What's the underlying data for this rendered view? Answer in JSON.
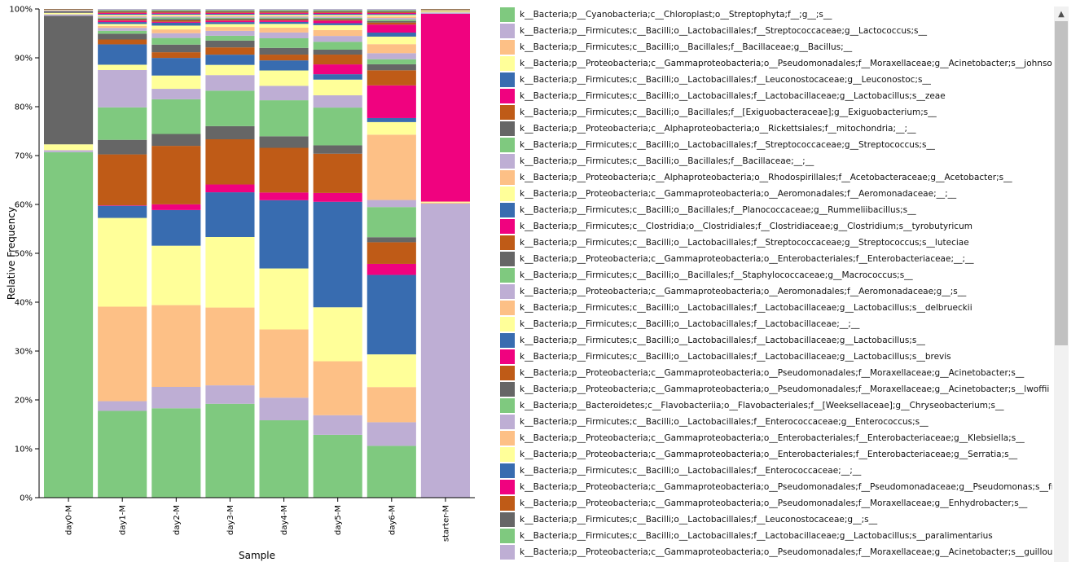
{
  "chart_data": {
    "type": "bar",
    "stacked": true,
    "xlabel": "Sample",
    "ylabel": "Relative Frequency",
    "ylim": [
      0,
      1
    ],
    "yticks": [
      "0%",
      "10%",
      "20%",
      "30%",
      "40%",
      "50%",
      "60%",
      "70%",
      "80%",
      "90%",
      "100%"
    ],
    "categories": [
      "day0-M",
      "day1-M",
      "day2-M",
      "day3-M",
      "day4-M",
      "day5-M",
      "day6-M",
      "starter-M"
    ],
    "series": [
      {
        "name": "k__Bacteria;p__Cyanobacteria;c__Chloroplast;o__Streptophyta;f__;g__;s__",
        "color": "#7fc97f",
        "values": [
          0.707,
          0.179,
          0.188,
          0.193,
          0.161,
          0.128,
          0.103,
          0
        ]
      },
      {
        "name": "k__Bacteria;p__Firmicutes;c__Bacilli;o__Lactobacillales;f__Streptococcaceae;g__Lactococcus;s__",
        "color": "#beaed4",
        "values": [
          0.004,
          0.02,
          0.045,
          0.038,
          0.047,
          0.04,
          0.047,
          0.603
        ]
      },
      {
        "name": "k__Bacteria;p__Firmicutes;c__Bacilli;o__Bacillales;f__Bacillaceae;g__Bacillus;__",
        "color": "#fdc086",
        "values": [
          0,
          0.195,
          0.172,
          0.16,
          0.142,
          0.11,
          0.07,
          0.002
        ]
      },
      {
        "name": "k__Bacteria;p__Proteobacteria;c__Gammaproteobacteria;o__Pseudomonadales;f__Moraxellaceae;g__Acinetobacter;s__johnsonii",
        "color": "#ffff99",
        "values": [
          0.012,
          0.183,
          0.125,
          0.145,
          0.127,
          0.11,
          0.065,
          0.002
        ]
      },
      {
        "name": "k__Bacteria;p__Firmicutes;c__Bacilli;o__Lactobacillales;f__Leuconostocaceae;g__Leuconostoc;s__",
        "color": "#386cb0",
        "values": [
          0,
          0.025,
          0.075,
          0.092,
          0.142,
          0.215,
          0.158,
          0
        ]
      },
      {
        "name": "k__Bacteria;p__Firmicutes;c__Bacilli;o__Lactobacillales;f__Lactobacillaceae;g__Lactobacillus;s__zeae",
        "color": "#f0027f",
        "values": [
          0,
          0.001,
          0.012,
          0.016,
          0.016,
          0.018,
          0.022,
          0.385
        ]
      },
      {
        "name": "k__Bacteria;p__Firmicutes;c__Bacilli;o__Bacillales;f__[Exiguobacteraceae];g__Exiguobacterium;s__",
        "color": "#bf5b17",
        "values": [
          0,
          0.105,
          0.123,
          0.093,
          0.093,
          0.08,
          0.043,
          0
        ]
      },
      {
        "name": "k__Bacteria;p__Proteobacteria;c__Alphaproteobacteria;o__Rickettsiales;f__mitochondria;__;__",
        "color": "#666666",
        "values": [
          0.263,
          0.03,
          0.025,
          0.027,
          0.024,
          0.017,
          0.01,
          0
        ]
      },
      {
        "name": "k__Bacteria;p__Firmicutes;c__Bacilli;o__Lactobacillales;f__Streptococcaceae;g__Streptococcus;s__",
        "color": "#7fc97f",
        "values": [
          0,
          0.067,
          0.073,
          0.073,
          0.075,
          0.077,
          0.06,
          0
        ]
      },
      {
        "name": "k__Bacteria;p__Firmicutes;c__Bacilli;o__Bacillales;f__Bacillaceae;__;__",
        "color": "#beaed4",
        "values": [
          0.003,
          0.077,
          0.022,
          0.032,
          0.03,
          0.025,
          0.014,
          0.003
        ]
      },
      {
        "name": "k__Bacteria;p__Proteobacteria;c__Alphaproteobacteria;o__Rhodospirillales;f__Acetobacteraceae;g__Acetobacter;s__",
        "color": "#fdc086",
        "values": [
          0,
          0,
          0,
          0,
          0,
          0,
          0.13,
          0
        ]
      },
      {
        "name": "k__Bacteria;p__Proteobacteria;c__Gammaproteobacteria;o__Aeromonadales;f__Aeromonadaceae;__;__",
        "color": "#ffff99",
        "values": [
          0.003,
          0.011,
          0.028,
          0.021,
          0.032,
          0.032,
          0.025,
          0.002
        ]
      },
      {
        "name": "k__Bacteria;p__Firmicutes;c__Bacilli;o__Bacillales;f__Planococcaceae;g__Rummeliibacillus;s__",
        "color": "#386cb0",
        "values": [
          0,
          0.042,
          0.037,
          0.021,
          0.021,
          0.011,
          0.008,
          0
        ]
      },
      {
        "name": "k__Bacteria;p__Firmicutes;c__Clostridia;o__Clostridiales;f__Clostridiaceae;g__Clostridium;s__tyrobutyricum",
        "color": "#f0027f",
        "values": [
          0,
          0,
          0,
          0,
          0,
          0.02,
          0.065,
          0
        ]
      },
      {
        "name": "k__Bacteria;p__Firmicutes;c__Bacilli;o__Lactobacillales;f__Streptococcaceae;g__Streptococcus;s__luteciae",
        "color": "#bf5b17",
        "values": [
          0,
          0.01,
          0.012,
          0.015,
          0.012,
          0.02,
          0.03,
          0
        ]
      },
      {
        "name": "k__Bacteria;p__Proteobacteria;c__Gammaproteobacteria;o__Enterobacteriales;f__Enterobacteriaceae;__;__",
        "color": "#666666",
        "values": [
          0.003,
          0.012,
          0.016,
          0.014,
          0.014,
          0.01,
          0.012,
          0.001
        ]
      },
      {
        "name": "k__Bacteria;p__Firmicutes;c__Bacilli;o__Bacillales;f__Staphylococcaceae;g__Macrococcus;s__",
        "color": "#7fc97f",
        "values": [
          0,
          0.006,
          0.014,
          0.01,
          0.02,
          0.016,
          0.01,
          0
        ]
      },
      {
        "name": "k__Bacteria;p__Proteobacteria;c__Gammaproteobacteria;o__Aeromonadales;f__Aeromonadaceae;g__;s__",
        "color": "#beaed4",
        "values": [
          0.002,
          0.006,
          0.01,
          0.01,
          0.012,
          0.012,
          0.012,
          0
        ]
      },
      {
        "name": "k__Bacteria;p__Firmicutes;c__Bacilli;o__Lactobacillales;f__Lactobacillaceae;g__Lactobacillus;s__delbrueckii",
        "color": "#fdc086",
        "values": [
          0,
          0.004,
          0.008,
          0.008,
          0.01,
          0.012,
          0.018,
          0.001
        ]
      },
      {
        "name": "k__Bacteria;p__Firmicutes;c__Bacilli;o__Lactobacillales;f__Lactobacillaceae;__;__",
        "color": "#ffff99",
        "values": [
          0.001,
          0.004,
          0.008,
          0.006,
          0.008,
          0.01,
          0.015,
          0.001
        ]
      },
      {
        "name": "k__Bacteria;p__Firmicutes;c__Bacilli;o__Lactobacillales;f__Lactobacillaceae;g__Lactobacillus;s__",
        "color": "#386cb0",
        "values": [
          0,
          0.004,
          0.006,
          0.004,
          0.004,
          0.004,
          0.008,
          0
        ]
      },
      {
        "name": "k__Bacteria;p__Firmicutes;c__Bacilli;o__Lactobacillales;f__Lactobacillaceae;g__Lactobacillus;s__brevis",
        "color": "#f0027f",
        "values": [
          0,
          0.003,
          0.002,
          0.003,
          0.003,
          0.005,
          0.016,
          0
        ]
      },
      {
        "name": "k__Bacteria;p__Proteobacteria;c__Gammaproteobacteria;o__Pseudomonadales;f__Moraxellaceae;g__Acinetobacter;s__",
        "color": "#bf5b17",
        "values": [
          0.001,
          0.002,
          0.003,
          0.002,
          0.002,
          0.002,
          0.004,
          0.001
        ]
      },
      {
        "name": "k__Bacteria;p__Proteobacteria;c__Gammaproteobacteria;o__Pseudomonadales;f__Moraxellaceae;g__Acinetobacter;s__lwoffii",
        "color": "#666666",
        "values": [
          0.001,
          0.002,
          0.003,
          0.002,
          0.002,
          0.002,
          0.003,
          0.001
        ]
      },
      {
        "name": "k__Bacteria;p__Bacteroidetes;c__Flavobacteriia;o__Flavobacteriales;f__[Weeksellaceae];g__Chryseobacterium;s__",
        "color": "#7fc97f",
        "values": [
          0,
          0.002,
          0.003,
          0.002,
          0.002,
          0.002,
          0.003,
          0
        ]
      },
      {
        "name": "k__Bacteria;p__Firmicutes;c__Bacilli;o__Lactobacillales;f__Enterococcaceae;g__Enterococcus;s__",
        "color": "#beaed4",
        "values": [
          0,
          0.002,
          0.002,
          0.002,
          0.002,
          0.002,
          0.003,
          0
        ]
      },
      {
        "name": "k__Bacteria;p__Proteobacteria;c__Gammaproteobacteria;o__Enterobacteriales;f__Enterobacteriaceae;g__Klebsiella;s__",
        "color": "#fdc086",
        "values": [
          0,
          0.002,
          0.002,
          0.002,
          0.002,
          0.002,
          0.003,
          0
        ]
      },
      {
        "name": "k__Bacteria;p__Proteobacteria;c__Gammaproteobacteria;o__Enterobacteriales;f__Enterobacteriaceae;g__Serratia;s__",
        "color": "#ffff99",
        "values": [
          0,
          0.002,
          0.002,
          0.002,
          0.002,
          0.002,
          0.003,
          0
        ]
      },
      {
        "name": "k__Bacteria;p__Firmicutes;c__Bacilli;o__Lactobacillales;f__Enterococcaceae;__;__",
        "color": "#386cb0",
        "values": [
          0,
          0.002,
          0.002,
          0.002,
          0.002,
          0.002,
          0.002,
          0
        ]
      },
      {
        "name": "k__Bacteria;p__Proteobacteria;c__Gammaproteobacteria;o__Pseudomonadales;f__Pseudomonadaceae;g__Pseudomonas;s__fragi",
        "color": "#f0027f",
        "values": [
          0,
          0.002,
          0.002,
          0.002,
          0.002,
          0.002,
          0.002,
          0
        ]
      },
      {
        "name": "k__Bacteria;p__Proteobacteria;c__Gammaproteobacteria;o__Pseudomonadales;f__Moraxellaceae;g__Enhydrobacter;s__",
        "color": "#bf5b17",
        "values": [
          0,
          0.002,
          0.002,
          0.002,
          0.002,
          0.002,
          0.002,
          0
        ]
      },
      {
        "name": "k__Bacteria;p__Firmicutes;c__Bacilli;o__Lactobacillales;f__Leuconostocaceae;g__;s__",
        "color": "#666666",
        "values": [
          0,
          0.002,
          0.002,
          0.002,
          0.002,
          0.002,
          0.002,
          0
        ]
      },
      {
        "name": "k__Bacteria;p__Firmicutes;c__Bacilli;o__Lactobacillales;f__Lactobacillaceae;g__Lactobacillus;s__paralimentarius",
        "color": "#7fc97f",
        "values": [
          0,
          0.002,
          0.002,
          0.002,
          0.002,
          0.002,
          0.002,
          0
        ]
      },
      {
        "name": "k__Bacteria;p__Proteobacteria;c__Gammaproteobacteria;o__Pseudomonadales;f__Moraxellaceae;g__Acinetobacter;s__guillouiae",
        "color": "#beaed4",
        "values": [
          0,
          0.002,
          0.002,
          0.002,
          0.002,
          0.002,
          0.002,
          0
        ]
      }
    ],
    "legend_position": "right"
  }
}
